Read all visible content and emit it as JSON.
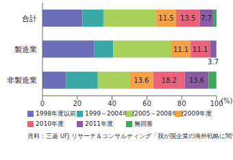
{
  "chart_data": {
    "type": "bar",
    "orientation": "horizontal",
    "stacked": true,
    "categories": [
      "合計",
      "製造業",
      "非製造業"
    ],
    "xlabel": "(%)",
    "xlim": [
      0,
      100
    ],
    "xticks": [
      0,
      20,
      40,
      60,
      80,
      100
    ],
    "legend": "bottom",
    "source": "資料：三菱 UFJ リサーチ＆コンサルティング「我が国企業の海外戦略に関するアンケート調査」から作成。",
    "series": [
      {
        "name": "1998年度以前",
        "color": "#6b6fb8",
        "values": [
          23.0,
          29.6,
          13.6
        ]
      },
      {
        "name": "1999～2004年度",
        "color": "#3aa8a4",
        "values": [
          12.0,
          11.1,
          18.2
        ]
      },
      {
        "name": "2005～2008年度",
        "color": "#a9d25c",
        "values": [
          30.3,
          33.3,
          18.2
        ]
      },
      {
        "name": "2009年度",
        "color": "#f4a24a",
        "values": [
          11.5,
          11.1,
          13.6
        ],
        "data_labels": true
      },
      {
        "name": "2010年度",
        "color": "#e9637a",
        "values": [
          13.5,
          11.1,
          18.2
        ],
        "data_labels": true
      },
      {
        "name": "2011年度",
        "color": "#8a5ca6",
        "values": [
          7.7,
          3.7,
          13.6
        ],
        "data_labels": true
      },
      {
        "name": "無回答",
        "color": "#3fa85a",
        "values": [
          2.0,
          0,
          4.5
        ]
      }
    ]
  }
}
